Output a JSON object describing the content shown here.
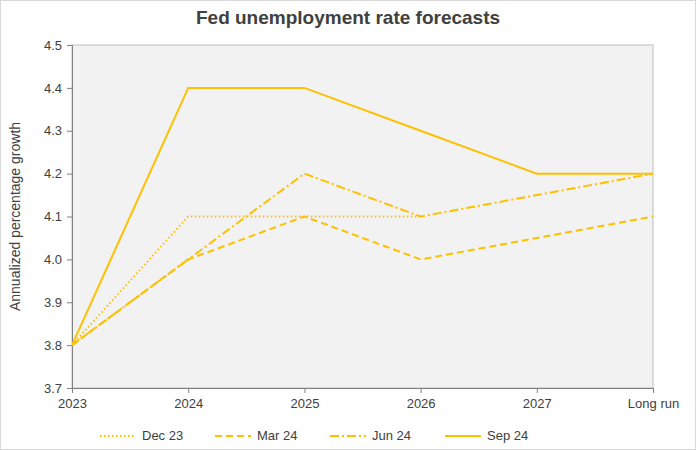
{
  "chart_data": {
    "type": "line",
    "title": "Fed unemployment rate forecasts",
    "y_label": "Annualized percentage growth",
    "categories": [
      "2023",
      "2024",
      "2025",
      "2026",
      "2027",
      "Long run"
    ],
    "series": [
      {
        "name": "Dec 23",
        "color": "#ffc000",
        "line_style": "dotted",
        "values": [
          3.8,
          4.1,
          4.1,
          4.1,
          null,
          null
        ]
      },
      {
        "name": "Mar 24",
        "color": "#ffc000",
        "line_style": "dashed",
        "values": [
          3.8,
          4.0,
          4.1,
          4.0,
          4.05,
          4.1
        ]
      },
      {
        "name": "Jun 24",
        "color": "#ffc000",
        "line_style": "dash-dot",
        "values": [
          3.8,
          4.0,
          4.2,
          4.1,
          4.15,
          4.2
        ]
      },
      {
        "name": "Sep 24",
        "color": "#ffc000",
        "line_style": "solid",
        "values": [
          3.8,
          4.4,
          4.4,
          4.3,
          4.2,
          4.2
        ]
      }
    ],
    "ylim": [
      3.7,
      4.5
    ],
    "yticks": [
      3.7,
      3.8,
      3.9,
      {
        "value": 4,
        "label": "4.0"
      },
      4.1,
      4.2,
      4.3,
      4.4,
      4.5
    ],
    "grid": false,
    "legend": "bottom"
  }
}
